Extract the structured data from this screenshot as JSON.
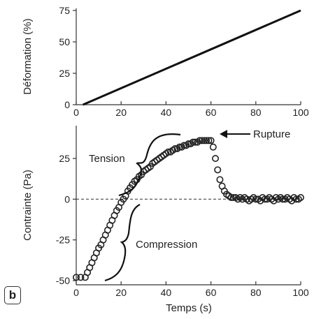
{
  "panel_tag": "b",
  "chart_data": [
    {
      "type": "line",
      "ylabel": "Déformation (%)",
      "xlabel": "",
      "xlim": [
        0,
        100
      ],
      "ylim": [
        0,
        75
      ],
      "x_ticks": [
        0,
        20,
        40,
        60,
        80,
        100
      ],
      "y_ticks": [
        0,
        25,
        50,
        75
      ],
      "series": [
        {
          "x": [
            3,
            100
          ],
          "y": [
            0,
            75
          ]
        }
      ]
    },
    {
      "type": "scatter",
      "ylabel": "Contrainte (Pa)",
      "xlabel": "Temps (s)",
      "xlim": [
        0,
        100
      ],
      "ylim": [
        -50,
        40
      ],
      "x_ticks": [
        0,
        20,
        40,
        60,
        80,
        100
      ],
      "y_ticks": [
        25,
        0,
        -25,
        -50
      ],
      "reference_line_y": 0,
      "annotations": [
        {
          "text": "Rupture",
          "x": 59,
          "y": 36
        },
        {
          "text": "Tension"
        },
        {
          "text": "Compression"
        }
      ],
      "series": [
        {
          "x": [
            0,
            2,
            4,
            5,
            6,
            7,
            8,
            9,
            10,
            11,
            12,
            13,
            14,
            15,
            16,
            17,
            18,
            19,
            20,
            21,
            22,
            23,
            24,
            25,
            26,
            27,
            28,
            29,
            30,
            31,
            32,
            33,
            34,
            35,
            36,
            37,
            38,
            39,
            40,
            41,
            42,
            43,
            44,
            45,
            46,
            47,
            48,
            49,
            50,
            51,
            52,
            53,
            54,
            55,
            56,
            57,
            58,
            59,
            60,
            61,
            62,
            63,
            64,
            65,
            66,
            67,
            68,
            69,
            70,
            71,
            72,
            73,
            74,
            75,
            76,
            77,
            78,
            79,
            80,
            81,
            82,
            83,
            84,
            85,
            86,
            87,
            88,
            89,
            90,
            91,
            92,
            93,
            94,
            95,
            96,
            97,
            98,
            99,
            100
          ],
          "y": [
            -48,
            -48,
            -48,
            -45,
            -42,
            -39,
            -36,
            -33,
            -30,
            -28,
            -25,
            -22,
            -19,
            -16,
            -13,
            -10,
            -7,
            -5,
            -2,
            0,
            2,
            5,
            7,
            9,
            11,
            12,
            14,
            15,
            17,
            18,
            19,
            20,
            22,
            23,
            24,
            25,
            26,
            27,
            28,
            29,
            29,
            30,
            31,
            31,
            32,
            32,
            33,
            33,
            34,
            34,
            35,
            35,
            35,
            36,
            36,
            36,
            36,
            36,
            36,
            32,
            25,
            18,
            12,
            8,
            5,
            3,
            2,
            1,
            1,
            1,
            0,
            1,
            0,
            1,
            0,
            -1,
            0,
            1,
            0,
            0,
            -1,
            1,
            0,
            0,
            1,
            0,
            -1,
            1,
            0,
            1,
            0,
            0,
            1,
            0,
            -1,
            1,
            0,
            0,
            1
          ]
        }
      ]
    }
  ]
}
